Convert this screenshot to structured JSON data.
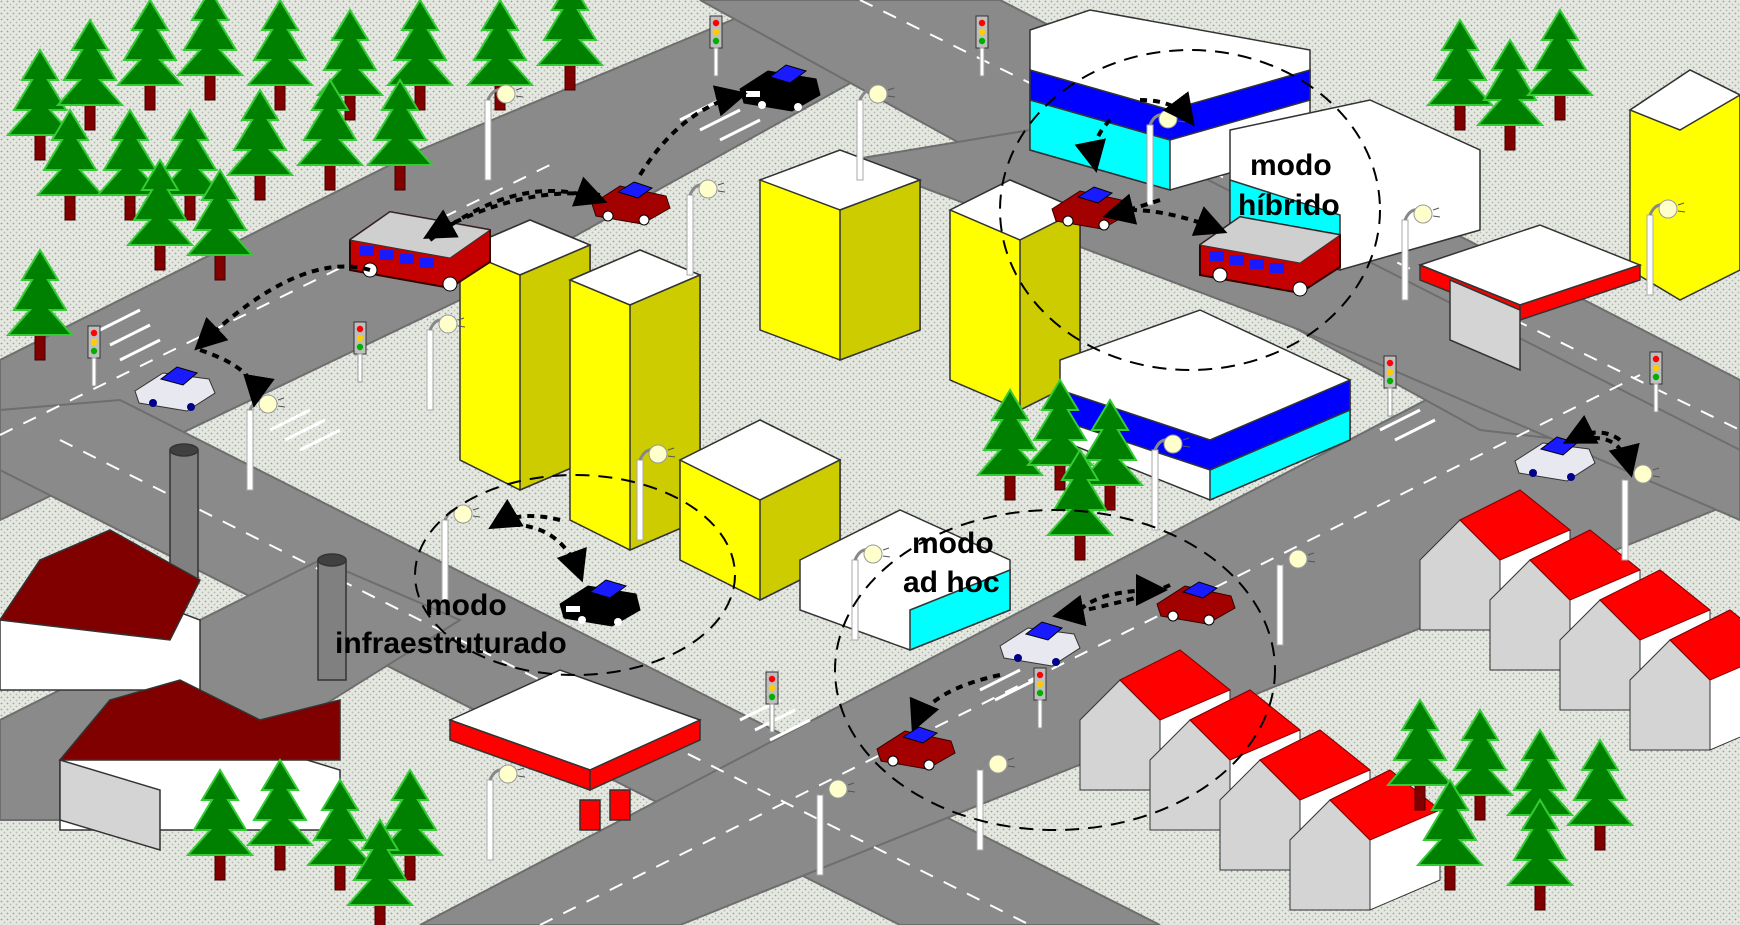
{
  "labels": {
    "hybrid_line1": "modo",
    "hybrid_line2": "híbrido",
    "infra_line1": "modo",
    "infra_line2": "infraestruturado",
    "adhoc_line1": "modo",
    "adhoc_line2": "ad hoc"
  },
  "colors": {
    "ground": "#dfe3dc",
    "road": "#8a8a8a",
    "road_dark": "#6e6e6e",
    "lane_mark": "#ffffff",
    "tree": "#008000",
    "tree_outline": "#33cc33",
    "trunk": "#800000",
    "building_yellow": "#ffff00",
    "building_yellow_side": "#cccc00",
    "building_top": "#ffffff",
    "building_side": "#d9d9d9",
    "stripe_blue": "#0000ff",
    "stripe_cyan": "#00ffff",
    "roof_red": "#ff0000",
    "factory_roof": "#800000",
    "car_red": "#a30000",
    "car_white": "#e8e8f0",
    "car_black": "#000000",
    "car_blue": "#1a1aff",
    "bus_red": "#c40000",
    "arrow": "#000000",
    "circle": "#000000"
  },
  "icons": [
    "tree-icon",
    "traffic-light-icon",
    "street-lamp-icon",
    "car-icon",
    "bus-icon",
    "building-icon",
    "house-icon",
    "factory-icon",
    "gas-station-icon"
  ]
}
